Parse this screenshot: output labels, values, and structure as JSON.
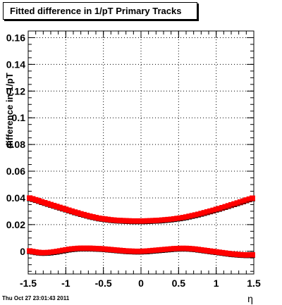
{
  "title": "Fitted difference in 1/pT  Primary Tracks",
  "timestamp": "Thu Oct 27 23:01:43 2011",
  "chart_data": {
    "type": "scatter",
    "title": "Fitted difference in 1/pT  Primary Tracks",
    "xlabel": "η",
    "ylabel": "difference in 1/pT",
    "xlim": [
      -1.5,
      1.5
    ],
    "ylim": [
      -0.017,
      0.165
    ],
    "xticks": [
      -1.5,
      -1,
      -0.5,
      0,
      0.5,
      1,
      1.5
    ],
    "xtick_labels": [
      "-1.5",
      "-1",
      "-0.5",
      "0",
      "0.5",
      "1",
      "1.5"
    ],
    "yticks": [
      0,
      0.02,
      0.04,
      0.06,
      0.08,
      0.1,
      0.12,
      0.14,
      0.16
    ],
    "ytick_labels": [
      "0",
      "0.02",
      "0.04",
      "0.06",
      "0.08",
      "0.1",
      "0.12",
      "0.14",
      "0.16"
    ],
    "grid": true,
    "marker_color": "#ff0000",
    "series": [
      {
        "marker": "square",
        "x": [
          -1.48,
          -1.44,
          -1.4,
          -1.36,
          -1.32,
          -1.28,
          -1.24,
          -1.2,
          -1.16,
          -1.12,
          -1.08,
          -1.04,
          -1.0,
          -0.96,
          -0.92,
          -0.88,
          -0.84,
          -0.8,
          -0.76,
          -0.72,
          -0.68,
          -0.64,
          -0.6,
          -0.56,
          -0.52,
          -0.48,
          -0.44,
          -0.4,
          -0.36,
          -0.32,
          -0.28,
          -0.24,
          -0.2,
          -0.16,
          -0.12,
          -0.08,
          -0.04,
          0.0,
          0.04,
          0.08,
          0.12,
          0.16,
          0.2,
          0.24,
          0.28,
          0.32,
          0.36,
          0.4,
          0.44,
          0.48,
          0.52,
          0.56,
          0.6,
          0.64,
          0.68,
          0.72,
          0.76,
          0.8,
          0.84,
          0.88,
          0.92,
          0.96,
          1.0,
          1.04,
          1.08,
          1.12,
          1.16,
          1.2,
          1.24,
          1.28,
          1.32,
          1.36,
          1.4,
          1.44,
          1.48
        ],
        "y": [
          0.0398,
          0.0392,
          0.0385,
          0.0378,
          0.037,
          0.0363,
          0.0356,
          0.0349,
          0.0342,
          0.0335,
          0.0328,
          0.0321,
          0.0314,
          0.0307,
          0.03,
          0.0293,
          0.0287,
          0.028,
          0.0274,
          0.0268,
          0.0262,
          0.0257,
          0.0252,
          0.0247,
          0.0244,
          0.0241,
          0.0238,
          0.0235,
          0.0233,
          0.0231,
          0.023,
          0.0229,
          0.0228,
          0.0227,
          0.0226,
          0.0226,
          0.0226,
          0.0226,
          0.0226,
          0.0227,
          0.0228,
          0.0229,
          0.023,
          0.0231,
          0.0233,
          0.0235,
          0.0237,
          0.0239,
          0.0242,
          0.0245,
          0.0248,
          0.0252,
          0.0256,
          0.0261,
          0.0266,
          0.0271,
          0.0276,
          0.0282,
          0.0288,
          0.0294,
          0.03,
          0.0306,
          0.0313,
          0.0319,
          0.0326,
          0.0333,
          0.034,
          0.0347,
          0.0354,
          0.0361,
          0.0368,
          0.0375,
          0.0383,
          0.039,
          0.0397
        ]
      },
      {
        "marker": "square",
        "x": [
          -1.48,
          -1.44,
          -1.4,
          -1.36,
          -1.32,
          -1.28,
          -1.24,
          -1.2,
          -1.16,
          -1.12,
          -1.08,
          -1.04,
          -1.0,
          -0.96,
          -0.92,
          -0.88,
          -0.84,
          -0.8,
          -0.76,
          -0.72,
          -0.68,
          -0.64,
          -0.6,
          -0.56,
          -0.52,
          -0.48,
          -0.44,
          -0.4,
          -0.36,
          -0.32,
          -0.28,
          -0.24,
          -0.2,
          -0.16,
          -0.12,
          -0.08,
          -0.04,
          0.0,
          0.04,
          0.08,
          0.12,
          0.16,
          0.2,
          0.24,
          0.28,
          0.32,
          0.36,
          0.4,
          0.44,
          0.48,
          0.52,
          0.56,
          0.6,
          0.64,
          0.68,
          0.72,
          0.76,
          0.8,
          0.84,
          0.88,
          0.92,
          0.96,
          1.0,
          1.04,
          1.08,
          1.12,
          1.16,
          1.2,
          1.24,
          1.28,
          1.32,
          1.36,
          1.4,
          1.44,
          1.48
        ],
        "y": [
          0.0002,
          -0.0002,
          -0.0006,
          -0.0009,
          -0.0011,
          -0.0011,
          -0.001,
          -0.0008,
          -0.0005,
          -0.0002,
          0.0002,
          0.0006,
          0.001,
          0.0014,
          0.0017,
          0.0019,
          0.0021,
          0.0022,
          0.0022,
          0.0022,
          0.0022,
          0.0021,
          0.002,
          0.0019,
          0.0018,
          0.0016,
          0.0014,
          0.0012,
          0.001,
          0.0008,
          0.0006,
          0.0004,
          0.0002,
          0.0001,
          0.0,
          -0.0001,
          -0.0001,
          -0.0001,
          0.0,
          0.0001,
          0.0003,
          0.0005,
          0.0007,
          0.0009,
          0.0011,
          0.0013,
          0.0015,
          0.0017,
          0.0019,
          0.002,
          0.0021,
          0.0021,
          0.0021,
          0.002,
          0.0018,
          0.0016,
          0.0013,
          0.001,
          0.0007,
          0.0004,
          0.0001,
          -0.0002,
          -0.0005,
          -0.0008,
          -0.0011,
          -0.0014,
          -0.0017,
          -0.002,
          -0.0022,
          -0.0024,
          -0.0026,
          -0.0027,
          -0.0028,
          -0.0028,
          -0.0027
        ]
      }
    ]
  }
}
